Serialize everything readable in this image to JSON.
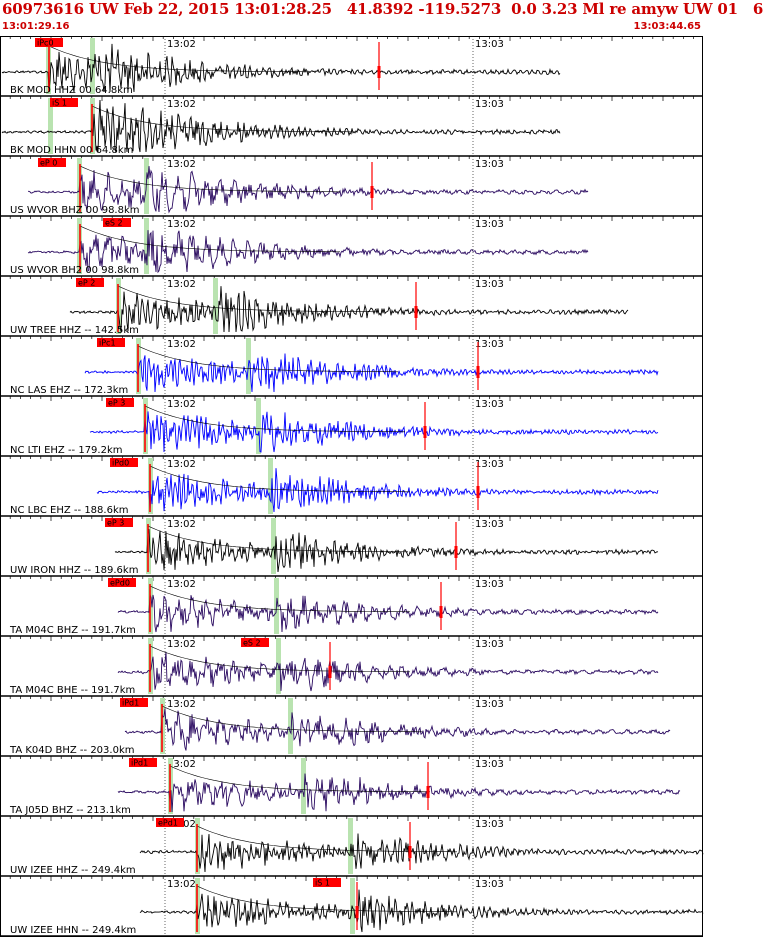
{
  "header": {
    "event_line": "60973616 UW Feb 22, 2015 13:01:28.25   41.8392 -119.5273  0.0 3.23 Ml re amyw UW 01   6",
    "time_start": "13:01:29.16",
    "time_end": "13:03:44.65"
  },
  "colors": {
    "black_trace": "#000000",
    "purple_trace": "#2a0a60",
    "blue_trace": "#0000ff",
    "pick_flag": "#ff0000",
    "predicted_band": "#b9e3b0",
    "travel_curve": "#000000",
    "amp_marker": "#ff0000"
  },
  "chart_data": {
    "type": "seismogram",
    "time_axis": {
      "start": "13:01:29.16",
      "end": "13:03:44.65",
      "tick_labels": [
        "13:02",
        "13:03"
      ]
    },
    "channels": [
      {
        "label": "BK MOD HHZ 00 64.8km",
        "pick": "iPc0",
        "color": "black"
      },
      {
        "label": "BK MOD HHN 00 64.8km",
        "pick": "iS 1",
        "color": "black"
      },
      {
        "label": "US WVOR BHZ 00 98.8km",
        "pick": "eP 0",
        "color": "purple"
      },
      {
        "label": "US WVOR BH2 00 98.8km",
        "pick": "eS 2",
        "color": "purple"
      },
      {
        "label": "UW TREE HHZ -- 142.5km",
        "pick": "eP 2",
        "color": "black"
      },
      {
        "label": "NC LAS EHZ -- 172.3km",
        "pick": "iPc1",
        "color": "blue"
      },
      {
        "label": "NC LTI EHZ -- 179.2km",
        "pick": "eP 3",
        "color": "blue"
      },
      {
        "label": "NC LBC EHZ -- 188.6km",
        "pick": "iPd0",
        "color": "blue"
      },
      {
        "label": "UW IRON HHZ -- 189.6km",
        "pick": "eP 3",
        "color": "black"
      },
      {
        "label": "TA M04C BHZ -- 191.7km",
        "pick": "ePd0",
        "color": "purple"
      },
      {
        "label": "TA M04C BHE -- 191.7km",
        "pick": "eS 2",
        "color": "purple"
      },
      {
        "label": "TA K04D BHZ -- 203.0km",
        "pick": "iPd1",
        "color": "purple"
      },
      {
        "label": "TA J05D BHZ -- 213.1km",
        "pick": "iPd1",
        "color": "purple"
      },
      {
        "label": "UW IZEE HHZ -- 249.4km",
        "pick": "ePd1",
        "color": "black"
      },
      {
        "label": "UW IZEE HHN -- 249.4km",
        "pick": "iS 1",
        "color": "black"
      }
    ]
  }
}
